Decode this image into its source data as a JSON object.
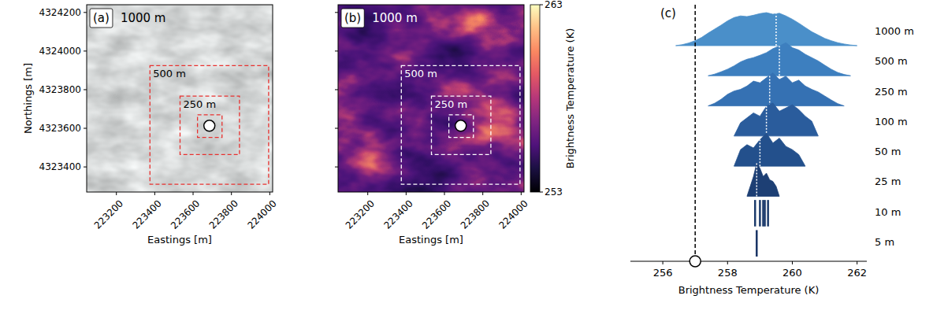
{
  "chart_data": [
    {
      "type": "hillshade",
      "panel_label": "(a)",
      "extent_label": "1000 m",
      "xlabel": "Eastings [m]",
      "ylabel": "Northings [m]",
      "xlim": [
        223045,
        224015
      ],
      "ylim": [
        4323270,
        4324240
      ],
      "xticks": [
        223200,
        223400,
        223600,
        223800,
        224000
      ],
      "yticks": [
        4323400,
        4323600,
        4323800,
        4324000,
        4324200
      ],
      "color": "#e8312f",
      "line_style": "dashed",
      "squares": [
        {
          "label": "500 m",
          "x": [
            223375,
            223994
          ],
          "y": [
            4323310,
            4323925
          ]
        },
        {
          "label": "250 m",
          "x": [
            223532,
            223842
          ],
          "y": [
            4323464,
            4323767
          ]
        },
        {
          "x": [
            223623,
            223751
          ],
          "y": [
            4323553,
            4323670
          ]
        }
      ],
      "point": {
        "x": 223685,
        "y": 4323613
      }
    },
    {
      "type": "thermal",
      "panel_label": "(b)",
      "extent_label": "1000 m",
      "xlabel": "Eastings [m]",
      "xlim": [
        223045,
        224015
      ],
      "ylim": [
        4323270,
        4324240
      ],
      "xticks": [
        223200,
        223400,
        223600,
        223800,
        224000
      ],
      "yticks": [
        4323400,
        4323600,
        4323800,
        4324000,
        4324200
      ],
      "tick_labels": "x",
      "color": "#ffffff",
      "line_style": "dashed",
      "squares": [
        {
          "label": "500 m",
          "x": [
            223375,
            223994
          ],
          "y": [
            4323310,
            4323925
          ]
        },
        {
          "label": "250 m",
          "x": [
            223532,
            223842
          ],
          "y": [
            4323464,
            4323767
          ]
        },
        {
          "x": [
            223623,
            223751
          ],
          "y": [
            4323553,
            4323670
          ]
        }
      ],
      "point": {
        "x": 223685,
        "y": 4323613
      },
      "colorbar": {
        "range": [
          253,
          263
        ],
        "ticks": [
          253,
          263
        ],
        "label": "Brightness Temperature (K)"
      }
    },
    {
      "type": "ridgeline",
      "panel_label": "(c)",
      "xlabel": "Brightness Temperature (K)",
      "xlim": [
        255.0,
        262.3
      ],
      "xticks": [
        256,
        258,
        260,
        262
      ],
      "tick_labels": "x",
      "reference": 257.0,
      "series": [
        {
          "name": "1000 m",
          "type": "area",
          "color": "#4a8fc9",
          "x": [
            256.4,
            256.6,
            256.8,
            257.0,
            257.2,
            257.4,
            257.6,
            257.8,
            258.0,
            258.2,
            258.4,
            258.6,
            258.8,
            259.0,
            259.2,
            259.4,
            259.6,
            259.8,
            260.0,
            260.2,
            260.4,
            260.6,
            260.8,
            261.0,
            261.2,
            261.4,
            261.6,
            261.8,
            262.0
          ],
          "values": [
            0,
            0.03,
            0.08,
            0.15,
            0.25,
            0.38,
            0.5,
            0.62,
            0.75,
            0.85,
            0.9,
            0.88,
            0.92,
            0.97,
            1.0,
            0.95,
            0.98,
            0.9,
            0.8,
            0.68,
            0.55,
            0.42,
            0.32,
            0.22,
            0.15,
            0.09,
            0.05,
            0.02,
            0
          ],
          "median": 259.5
        },
        {
          "name": "500 m",
          "type": "area",
          "color": "#3d7fbf",
          "x": [
            257.4,
            257.6,
            257.8,
            258.0,
            258.2,
            258.4,
            258.6,
            258.8,
            259.0,
            259.2,
            259.4,
            259.6,
            259.8,
            260.0,
            260.2,
            260.4,
            260.6,
            260.8,
            261.0,
            261.2,
            261.4,
            261.6,
            261.8
          ],
          "values": [
            0,
            0.05,
            0.12,
            0.2,
            0.3,
            0.42,
            0.5,
            0.55,
            0.62,
            0.7,
            0.82,
            0.9,
            1.0,
            0.85,
            0.78,
            0.65,
            0.55,
            0.45,
            0.32,
            0.2,
            0.1,
            0.04,
            0
          ],
          "median": 259.6
        },
        {
          "name": "250 m",
          "type": "area",
          "color": "#3571b3",
          "x": [
            257.4,
            257.6,
            257.8,
            258.0,
            258.2,
            258.4,
            258.6,
            258.8,
            259.0,
            259.2,
            259.4,
            259.6,
            259.8,
            260.0,
            260.2,
            260.4,
            260.6,
            260.8,
            261.0,
            261.2,
            261.4,
            261.6
          ],
          "values": [
            0,
            0.08,
            0.2,
            0.35,
            0.45,
            0.5,
            0.6,
            0.75,
            0.7,
            0.85,
            1.0,
            0.8,
            0.9,
            0.7,
            0.78,
            0.6,
            0.5,
            0.42,
            0.3,
            0.18,
            0.07,
            0
          ],
          "median": 259.3
        },
        {
          "name": "100 m",
          "type": "area",
          "color": "#2a5c9c",
          "x": [
            258.2,
            258.4,
            258.6,
            258.8,
            259.0,
            259.2,
            259.4,
            259.6,
            259.8,
            260.0,
            260.2,
            260.4,
            260.6,
            260.8
          ],
          "values": [
            0,
            0.4,
            0.55,
            0.7,
            0.6,
            0.9,
            1.0,
            0.75,
            0.85,
            0.95,
            0.8,
            0.6,
            0.45,
            0
          ],
          "median": 259.2
        },
        {
          "name": "50 m",
          "type": "area",
          "color": "#23508c",
          "x": [
            258.2,
            258.4,
            258.6,
            258.8,
            259.0,
            259.2,
            259.4,
            259.6,
            259.8,
            260.0,
            260.2,
            260.4
          ],
          "values": [
            0,
            0.5,
            0.65,
            0.55,
            0.8,
            1.0,
            0.7,
            0.85,
            0.6,
            0.5,
            0.35,
            0
          ],
          "median": 259.0
        },
        {
          "name": "25 m",
          "type": "area",
          "color": "#1d3f74",
          "x": [
            258.6,
            258.7,
            258.8,
            258.9,
            259.0,
            259.1,
            259.2,
            259.3,
            259.4,
            259.5,
            259.6
          ],
          "values": [
            0,
            0.3,
            0.6,
            1.0,
            0.85,
            0.6,
            0.7,
            0.5,
            0.45,
            0.3,
            0
          ],
          "median": 258.9
        },
        {
          "name": "10 m",
          "type": "spike",
          "color": "#1b3a6b",
          "x": [
            258.85,
            259.0,
            259.1,
            259.15,
            259.25
          ],
          "values": [
            0.8,
            0.8,
            0.8,
            0.8,
            0.8
          ]
        },
        {
          "name": "5 m",
          "type": "spike",
          "color": "#1a3566",
          "x": [
            258.9
          ],
          "values": [
            0.8
          ]
        }
      ]
    }
  ]
}
